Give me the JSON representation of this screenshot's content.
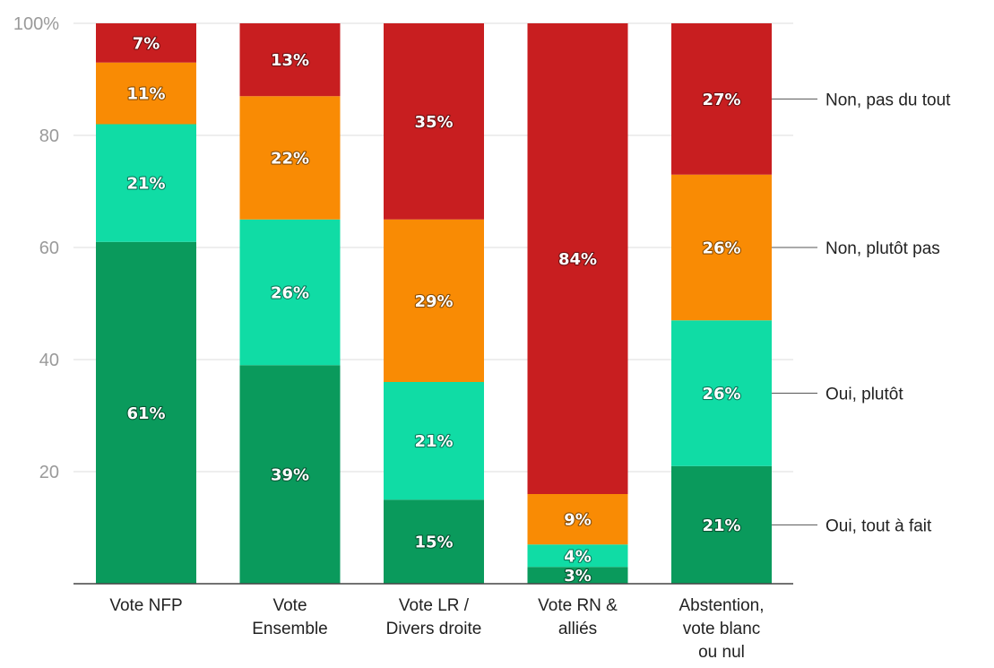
{
  "chart_data": {
    "type": "bar",
    "stacked": true,
    "title": "",
    "xlabel": "",
    "ylabel": "",
    "ylim": [
      0,
      100
    ],
    "y_ticks": [
      {
        "value": 20,
        "label": "20"
      },
      {
        "value": 40,
        "label": "40"
      },
      {
        "value": 60,
        "label": "60"
      },
      {
        "value": 80,
        "label": "80"
      },
      {
        "value": 100,
        "label": "100%"
      }
    ],
    "grid": true,
    "legend_position": "right",
    "categories": [
      [
        "Vote NFP"
      ],
      [
        "Vote",
        "Ensemble"
      ],
      [
        "Vote LR /",
        "Divers droite"
      ],
      [
        "Vote RN &",
        "alliés"
      ],
      [
        "Abstention,",
        "vote blanc",
        "ou nul"
      ]
    ],
    "series": [
      {
        "name": "Oui, tout à fait",
        "color": "#0a9a5c",
        "values": [
          61,
          39,
          15,
          3,
          21
        ]
      },
      {
        "name": "Oui, plutôt",
        "color": "#10dca5",
        "values": [
          21,
          26,
          21,
          4,
          26
        ]
      },
      {
        "name": "Non, plutôt pas",
        "color": "#f98b04",
        "values": [
          11,
          22,
          29,
          9,
          26
        ]
      },
      {
        "name": "Non, pas du tout",
        "color": "#c81e20",
        "values": [
          7,
          13,
          35,
          84,
          27
        ]
      }
    ],
    "legend_order": [
      "Non, pas du tout",
      "Non, plutôt pas",
      "Oui, plutôt",
      "Oui, tout à fait"
    ],
    "value_suffix": "%"
  }
}
